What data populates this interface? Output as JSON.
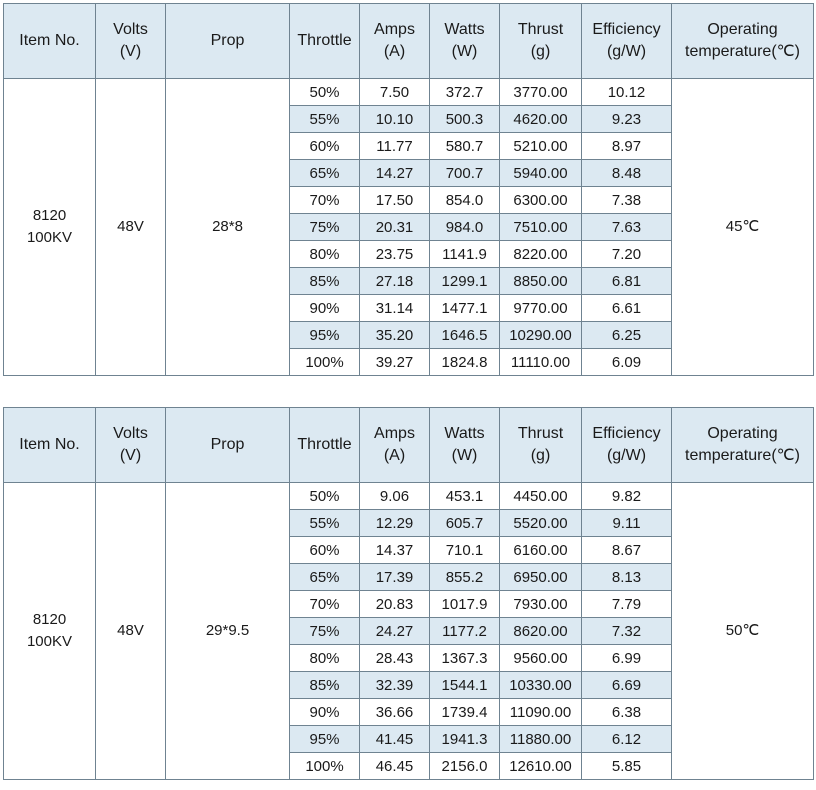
{
  "tables": [
    {
      "headers": [
        [
          "Item No."
        ],
        [
          "Volts",
          "(V)"
        ],
        [
          "Prop"
        ],
        [
          "Throttle"
        ],
        [
          "Amps",
          "(A)"
        ],
        [
          "Watts",
          "(W)"
        ],
        [
          "Thrust",
          "(g)"
        ],
        [
          "Efficiency",
          "(g/W)"
        ],
        [
          "Operating",
          "temperature(℃)"
        ]
      ],
      "item_no": [
        "8120",
        "100KV"
      ],
      "volts": "48V",
      "prop": "28*8",
      "temperature": "45℃",
      "rows": [
        {
          "throttle": "50%",
          "amps": "7.50",
          "watts": "372.7",
          "thrust": "3770.00",
          "efficiency": "10.12"
        },
        {
          "throttle": "55%",
          "amps": "10.10",
          "watts": "500.3",
          "thrust": "4620.00",
          "efficiency": "9.23"
        },
        {
          "throttle": "60%",
          "amps": "11.77",
          "watts": "580.7",
          "thrust": "5210.00",
          "efficiency": "8.97"
        },
        {
          "throttle": "65%",
          "amps": "14.27",
          "watts": "700.7",
          "thrust": "5940.00",
          "efficiency": "8.48"
        },
        {
          "throttle": "70%",
          "amps": "17.50",
          "watts": "854.0",
          "thrust": "6300.00",
          "efficiency": "7.38"
        },
        {
          "throttle": "75%",
          "amps": "20.31",
          "watts": "984.0",
          "thrust": "7510.00",
          "efficiency": "7.63"
        },
        {
          "throttle": "80%",
          "amps": "23.75",
          "watts": "1141.9",
          "thrust": "8220.00",
          "efficiency": "7.20"
        },
        {
          "throttle": "85%",
          "amps": "27.18",
          "watts": "1299.1",
          "thrust": "8850.00",
          "efficiency": "6.81"
        },
        {
          "throttle": "90%",
          "amps": "31.14",
          "watts": "1477.1",
          "thrust": "9770.00",
          "efficiency": "6.61"
        },
        {
          "throttle": "95%",
          "amps": "35.20",
          "watts": "1646.5",
          "thrust": "10290.00",
          "efficiency": "6.25"
        },
        {
          "throttle": "100%",
          "amps": "39.27",
          "watts": "1824.8",
          "thrust": "11110.00",
          "efficiency": "6.09"
        }
      ]
    },
    {
      "headers": [
        [
          "Item No."
        ],
        [
          "Volts",
          "(V)"
        ],
        [
          "Prop"
        ],
        [
          "Throttle"
        ],
        [
          "Amps",
          "(A)"
        ],
        [
          "Watts",
          "(W)"
        ],
        [
          "Thrust",
          "(g)"
        ],
        [
          "Efficiency",
          "(g/W)"
        ],
        [
          "Operating",
          "temperature(℃)"
        ]
      ],
      "item_no": [
        "8120",
        "100KV"
      ],
      "volts": "48V",
      "prop": "29*9.5",
      "temperature": "50℃",
      "rows": [
        {
          "throttle": "50%",
          "amps": "9.06",
          "watts": "453.1",
          "thrust": "4450.00",
          "efficiency": "9.82"
        },
        {
          "throttle": "55%",
          "amps": "12.29",
          "watts": "605.7",
          "thrust": "5520.00",
          "efficiency": "9.11"
        },
        {
          "throttle": "60%",
          "amps": "14.37",
          "watts": "710.1",
          "thrust": "6160.00",
          "efficiency": "8.67"
        },
        {
          "throttle": "65%",
          "amps": "17.39",
          "watts": "855.2",
          "thrust": "6950.00",
          "efficiency": "8.13"
        },
        {
          "throttle": "70%",
          "amps": "20.83",
          "watts": "1017.9",
          "thrust": "7930.00",
          "efficiency": "7.79"
        },
        {
          "throttle": "75%",
          "amps": "24.27",
          "watts": "1177.2",
          "thrust": "8620.00",
          "efficiency": "7.32"
        },
        {
          "throttle": "80%",
          "amps": "28.43",
          "watts": "1367.3",
          "thrust": "9560.00",
          "efficiency": "6.99"
        },
        {
          "throttle": "85%",
          "amps": "32.39",
          "watts": "1544.1",
          "thrust": "10330.00",
          "efficiency": "6.69"
        },
        {
          "throttle": "90%",
          "amps": "36.66",
          "watts": "1739.4",
          "thrust": "11090.00",
          "efficiency": "6.38"
        },
        {
          "throttle": "95%",
          "amps": "41.45",
          "watts": "1941.3",
          "thrust": "11880.00",
          "efficiency": "6.12"
        },
        {
          "throttle": "100%",
          "amps": "46.45",
          "watts": "2156.0",
          "thrust": "12610.00",
          "efficiency": "5.85"
        }
      ]
    }
  ],
  "colors": {
    "header_fill": "#dce9f2",
    "alt_row_fill": "#dce9f2",
    "border": "#6f8391",
    "text": "#1a1a1a"
  }
}
